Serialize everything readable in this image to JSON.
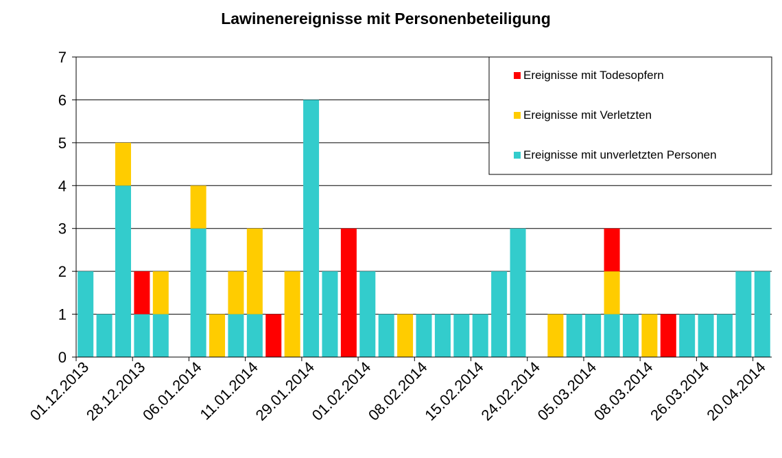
{
  "chart_data": {
    "type": "bar",
    "stacked": true,
    "title": "Lawinenereignisse mit Personenbeteiligung",
    "xlabel": "",
    "ylabel": "",
    "ylim": [
      0,
      7
    ],
    "yticks": [
      "0",
      "1",
      "2",
      "3",
      "4",
      "5",
      "6",
      "7"
    ],
    "grid": true,
    "legend_position": "top-right",
    "x_tick_labels": [
      "01.12.2013",
      "28.12.2013",
      "06.01.2014",
      "11.01.2014",
      "29.01.2014",
      "01.02.2014",
      "08.02.2014",
      "15.02.2014",
      "24.02.2014",
      "05.03.2014",
      "08.03.2014",
      "26.03.2014",
      "20.04.2014"
    ],
    "series": [
      {
        "name": "Ereignisse mit unverletzten Personen",
        "color": "#33CCCC",
        "values": [
          2,
          1,
          4,
          1,
          1,
          0,
          3,
          0,
          1,
          1,
          0,
          0,
          6,
          2,
          0,
          2,
          1,
          0,
          1,
          1,
          1,
          1,
          2,
          3,
          0,
          0,
          1,
          1,
          1,
          1,
          0,
          0,
          1,
          1,
          1,
          2,
          2
        ]
      },
      {
        "name": "Ereignisse mit Verletzten",
        "color": "#FFCC00",
        "values": [
          0,
          0,
          1,
          0,
          1,
          0,
          1,
          1,
          1,
          2,
          0,
          2,
          0,
          0,
          0,
          0,
          0,
          1,
          0,
          0,
          0,
          0,
          0,
          0,
          0,
          1,
          0,
          0,
          1,
          0,
          1,
          0,
          0,
          0,
          0,
          0,
          0
        ]
      },
      {
        "name": "Ereignisse mit Todesopfern",
        "color": "#FF0000",
        "values": [
          0,
          0,
          0,
          1,
          0,
          0,
          0,
          0,
          0,
          0,
          1,
          0,
          0,
          0,
          3,
          0,
          0,
          0,
          0,
          0,
          0,
          0,
          0,
          0,
          0,
          0,
          0,
          0,
          1,
          0,
          0,
          1,
          0,
          0,
          0,
          0,
          0
        ]
      }
    ]
  }
}
